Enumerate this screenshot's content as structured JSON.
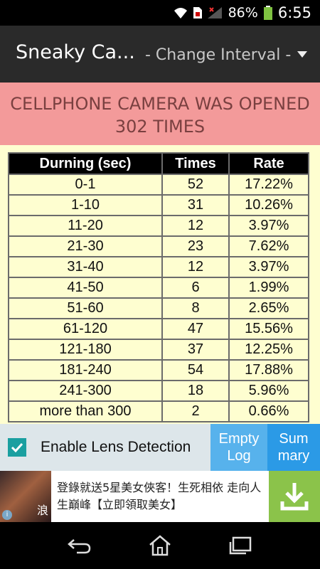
{
  "status": {
    "battery_percent": "86%",
    "time": "6:55"
  },
  "header": {
    "title": "Sneaky Ca...",
    "spinner_label": "- Change Interval -"
  },
  "banner": {
    "line1": "CELLPHONE CAMERA WAS OPENED",
    "line2": "302 TIMES"
  },
  "table": {
    "headers": [
      "Durning (sec)",
      "Times",
      "Rate"
    ],
    "rows": [
      [
        "0-1",
        "52",
        "17.22%"
      ],
      [
        "1-10",
        "31",
        "10.26%"
      ],
      [
        "11-20",
        "12",
        "3.97%"
      ],
      [
        "21-30",
        "23",
        "7.62%"
      ],
      [
        "31-40",
        "12",
        "3.97%"
      ],
      [
        "41-50",
        "6",
        "1.99%"
      ],
      [
        "51-60",
        "8",
        "2.65%"
      ],
      [
        "61-120",
        "47",
        "15.56%"
      ],
      [
        "121-180",
        "37",
        "12.25%"
      ],
      [
        "181-240",
        "54",
        "17.88%"
      ],
      [
        "241-300",
        "18",
        "5.96%"
      ],
      [
        "more than 300",
        "2",
        "0.66%"
      ]
    ]
  },
  "bottom": {
    "lens_label": "Enable Lens Detection",
    "empty_line1": "Empty",
    "empty_line2": "Log",
    "summary_line1": "Sum",
    "summary_line2": "mary"
  },
  "ad": {
    "text": "登錄就送5星美女俠客！生死相依 走向人生巔峰【立即領取美女】",
    "image_caption": "浪",
    "info_mark": "i"
  },
  "icons": {
    "wifi": "wifi-icon",
    "sim": "sim-icon",
    "signal": "signal-icon",
    "battery": "battery-icon",
    "download": "download-icon",
    "back": "back-icon",
    "home": "home-icon",
    "recents": "recents-icon"
  }
}
